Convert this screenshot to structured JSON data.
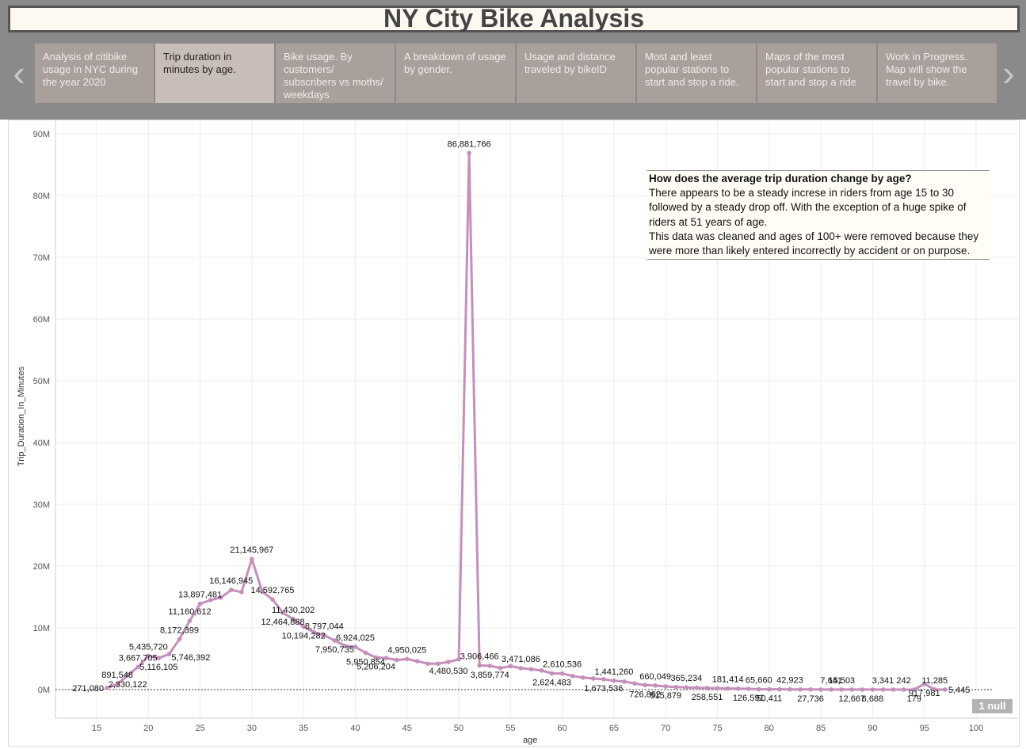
{
  "title": "NY City Bike Analysis",
  "nav": {
    "prev_icon": "‹",
    "next_icon": "›"
  },
  "story_points": [
    {
      "label": "Analysis of citibike usage in NYC during the year 2020",
      "active": false
    },
    {
      "label": "Trip duration in minutes by age.",
      "active": true
    },
    {
      "label": "Bike usage. By customers/ subscribers vs moths/ weekdays",
      "active": false
    },
    {
      "label": "A breakdown of usage by gender.",
      "active": false
    },
    {
      "label": "Usage and distance traveled by bikeID",
      "active": false
    },
    {
      "label": "Most and least popular stations to start and stop a ride.",
      "active": false
    },
    {
      "label": "Maps of the most popular stations to start and stop a ride",
      "active": false
    },
    {
      "label": "Work in Progress. Map will show the travel by bike.",
      "active": false
    }
  ],
  "annotation": {
    "heading": "How does the average trip duration change by age?",
    "body1": "There appears to be a steady increse in riders from age 15 to 30 followed by a steady drop off. With the exception of a huge spike of riders at 51 years of age.",
    "body2": "This data was cleaned and ages of 100+ were removed because they were more than likely entered incorrectly by accident or on purpose."
  },
  "null_badge": "1 null",
  "colors": {
    "line": "#c48fbb",
    "grid": "#ececec"
  },
  "chart_data": {
    "type": "line",
    "xlabel": "age",
    "ylabel": "Trip_Duration_In_Minutes",
    "xlim": [
      11,
      102
    ],
    "ylim": [
      -4500000,
      90000000
    ],
    "x_ticks": [
      15,
      20,
      25,
      30,
      35,
      40,
      45,
      50,
      55,
      60,
      65,
      70,
      75,
      80,
      85,
      90,
      95,
      100
    ],
    "y_ticks": [
      {
        "value": 0,
        "label": "0M"
      },
      {
        "value": 10000000,
        "label": "10M"
      },
      {
        "value": 20000000,
        "label": "20M"
      },
      {
        "value": 30000000,
        "label": "30M"
      },
      {
        "value": 40000000,
        "label": "40M"
      },
      {
        "value": 50000000,
        "label": "50M"
      },
      {
        "value": 60000000,
        "label": "60M"
      },
      {
        "value": 70000000,
        "label": "70M"
      },
      {
        "value": 80000000,
        "label": "80M"
      },
      {
        "value": 90000000,
        "label": "90M"
      }
    ],
    "zero_line": "dotted",
    "grid": true,
    "series": [
      {
        "points": [
          [
            16,
            271080
          ],
          [
            17,
            891548
          ],
          [
            18,
            2330122
          ],
          [
            19,
            3667705
          ],
          [
            20,
            5435720
          ],
          [
            21,
            5116105
          ],
          [
            22,
            5746392
          ],
          [
            23,
            8172399
          ],
          [
            24,
            11160612
          ],
          [
            25,
            13897481
          ],
          [
            26,
            14500000
          ],
          [
            27,
            14900000
          ],
          [
            28,
            16146945
          ],
          [
            29,
            15800000
          ],
          [
            30,
            21145967
          ],
          [
            31,
            15900000
          ],
          [
            32,
            14592765
          ],
          [
            33,
            12464888
          ],
          [
            34,
            11430202
          ],
          [
            35,
            10194282
          ],
          [
            36,
            9300000
          ],
          [
            37,
            8797044
          ],
          [
            38,
            7950735
          ],
          [
            39,
            7100000
          ],
          [
            40,
            6924025
          ],
          [
            41,
            5950854
          ],
          [
            42,
            5206204
          ],
          [
            43,
            5100000
          ],
          [
            44,
            4800000
          ],
          [
            45,
            4950025
          ],
          [
            46,
            4600000
          ],
          [
            47,
            4200000
          ],
          [
            48,
            4200000
          ],
          [
            49,
            4480530
          ],
          [
            50,
            4900000
          ],
          [
            51,
            86881766
          ],
          [
            52,
            3906466
          ],
          [
            53,
            3859774
          ],
          [
            54,
            3500000
          ],
          [
            55,
            3800000
          ],
          [
            56,
            3471086
          ],
          [
            57,
            3300000
          ],
          [
            58,
            3100000
          ],
          [
            59,
            2624483
          ],
          [
            60,
            2610536
          ],
          [
            61,
            2200000
          ],
          [
            62,
            1950000
          ],
          [
            63,
            1800000
          ],
          [
            64,
            1673536
          ],
          [
            65,
            1441260
          ],
          [
            66,
            1300000
          ],
          [
            67,
            1000000
          ],
          [
            68,
            726862
          ],
          [
            69,
            660049
          ],
          [
            70,
            515879
          ],
          [
            71,
            420000
          ],
          [
            72,
            365234
          ],
          [
            73,
            300000
          ],
          [
            74,
            258551
          ],
          [
            75,
            220000
          ],
          [
            76,
            181414
          ],
          [
            77,
            150000
          ],
          [
            78,
            126591
          ],
          [
            79,
            65660
          ],
          [
            80,
            50411
          ],
          [
            81,
            45000
          ],
          [
            82,
            42923
          ],
          [
            83,
            30000
          ],
          [
            84,
            27736
          ],
          [
            85,
            15000
          ],
          [
            86,
            7641
          ],
          [
            87,
            15503
          ],
          [
            88,
            12667
          ],
          [
            89,
            8000
          ],
          [
            90,
            6688
          ],
          [
            91,
            3341
          ],
          [
            92,
            2000
          ],
          [
            93,
            242
          ],
          [
            94,
            179
          ],
          [
            95,
            917981
          ],
          [
            96,
            11285
          ],
          [
            97,
            5445
          ]
        ]
      }
    ],
    "data_labels": [
      {
        "x": 16,
        "text": "271,080",
        "pos": "left"
      },
      {
        "x": 17,
        "text": "891,548",
        "pos": "above"
      },
      {
        "x": 18,
        "text": "2,330,122",
        "pos": "below"
      },
      {
        "x": 19,
        "text": "3,667,705",
        "pos": "above"
      },
      {
        "x": 20,
        "text": "5,435,720",
        "pos": "above"
      },
      {
        "x": 21,
        "text": "5,116,105",
        "pos": "below"
      },
      {
        "x": 22,
        "text": "5,746,392",
        "pos": "right"
      },
      {
        "x": 23,
        "text": "8,172,399",
        "pos": "above"
      },
      {
        "x": 24,
        "text": "11,160,612",
        "pos": "above"
      },
      {
        "x": 25,
        "text": "13,897,481",
        "pos": "above"
      },
      {
        "x": 28,
        "text": "16,146,945",
        "pos": "above"
      },
      {
        "x": 30,
        "text": "21,145,967",
        "pos": "above"
      },
      {
        "x": 32,
        "text": "14,592,765",
        "pos": "above"
      },
      {
        "x": 33,
        "text": "12,464,888",
        "pos": "below"
      },
      {
        "x": 34,
        "text": "11,430,202",
        "pos": "above"
      },
      {
        "x": 35,
        "text": "10,194,282",
        "pos": "below"
      },
      {
        "x": 37,
        "text": "8,797,044",
        "pos": "above"
      },
      {
        "x": 38,
        "text": "7,950,735",
        "pos": "below"
      },
      {
        "x": 40,
        "text": "6,924,025",
        "pos": "above"
      },
      {
        "x": 41,
        "text": "5,950,854",
        "pos": "below"
      },
      {
        "x": 42,
        "text": "5,206,204",
        "pos": "below"
      },
      {
        "x": 45,
        "text": "4,950,025",
        "pos": "above"
      },
      {
        "x": 49,
        "text": "4,480,530",
        "pos": "below"
      },
      {
        "x": 51,
        "text": "86,881,766",
        "pos": "above"
      },
      {
        "x": 52,
        "text": "3,906,466",
        "pos": "above"
      },
      {
        "x": 53,
        "text": "3,859,774",
        "pos": "below"
      },
      {
        "x": 56,
        "text": "3,471,086",
        "pos": "above"
      },
      {
        "x": 59,
        "text": "2,624,483",
        "pos": "below"
      },
      {
        "x": 60,
        "text": "2,610,536",
        "pos": "above"
      },
      {
        "x": 64,
        "text": "1,673,536",
        "pos": "below"
      },
      {
        "x": 65,
        "text": "1,441,260",
        "pos": "above"
      },
      {
        "x": 68,
        "text": "726,862",
        "pos": "below"
      },
      {
        "x": 69,
        "text": "660,049",
        "pos": "above"
      },
      {
        "x": 70,
        "text": "515,879",
        "pos": "below"
      },
      {
        "x": 72,
        "text": "365,234",
        "pos": "above"
      },
      {
        "x": 74,
        "text": "258,551",
        "pos": "below"
      },
      {
        "x": 76,
        "text": "181,414",
        "pos": "above"
      },
      {
        "x": 78,
        "text": "126,591",
        "pos": "below"
      },
      {
        "x": 79,
        "text": "65,660",
        "pos": "above"
      },
      {
        "x": 80,
        "text": "50,411",
        "pos": "below"
      },
      {
        "x": 82,
        "text": "42,923",
        "pos": "above"
      },
      {
        "x": 84,
        "text": "27,736",
        "pos": "below"
      },
      {
        "x": 86,
        "text": "7,641",
        "pos": "above"
      },
      {
        "x": 87,
        "text": "15,503",
        "pos": "above"
      },
      {
        "x": 88,
        "text": "12,667",
        "pos": "below"
      },
      {
        "x": 90,
        "text": "6,688",
        "pos": "below"
      },
      {
        "x": 93,
        "text": "242",
        "pos": "above"
      },
      {
        "x": 91,
        "text": "3,341",
        "pos": "above"
      },
      {
        "x": 94,
        "text": "179",
        "pos": "below"
      },
      {
        "x": 95,
        "text": "917,981",
        "pos": "below"
      },
      {
        "x": 96,
        "text": "11,285",
        "pos": "above"
      },
      {
        "x": 97,
        "text": "5,445",
        "pos": "right"
      }
    ]
  }
}
